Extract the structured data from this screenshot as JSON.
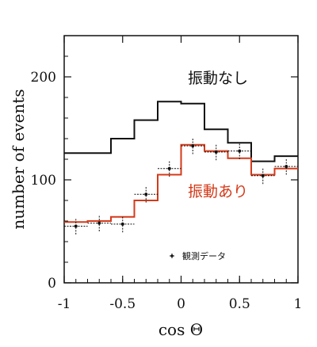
{
  "chart_data": {
    "type": "line",
    "xlabel": "cos Θ",
    "ylabel": "number of events",
    "xlim": [
      -1,
      1
    ],
    "ylim": [
      0,
      240
    ],
    "x_ticks": [
      -1,
      -0.5,
      0,
      0.5,
      1
    ],
    "x_tick_labels": [
      "-1",
      "-0.5",
      "0",
      "0.5",
      "1"
    ],
    "y_ticks": [
      0,
      100,
      200
    ],
    "y_tick_labels": [
      "0",
      "100",
      "200"
    ],
    "bin_edges": [
      -1,
      -0.8,
      -0.6,
      -0.4,
      -0.2,
      0,
      0.2,
      0.4,
      0.6,
      0.8,
      1
    ],
    "series": [
      {
        "name": "振動なし",
        "style": "step",
        "color": "#111111",
        "values": [
          126,
          126,
          140,
          158,
          176,
          174,
          149,
          136,
          118,
          123
        ]
      },
      {
        "name": "振動あり",
        "style": "step",
        "color": "#d43a1a",
        "values": [
          59,
          60,
          64,
          80,
          105,
          134,
          128,
          121,
          105,
          111
        ]
      },
      {
        "name": "観測データ",
        "style": "points",
        "color": "#111111",
        "x": [
          -0.9,
          -0.7,
          -0.5,
          -0.3,
          -0.1,
          0.1,
          0.3,
          0.5,
          0.7,
          0.9
        ],
        "values": [
          55,
          58,
          57,
          86,
          111,
          133,
          127,
          128,
          104,
          113
        ],
        "xerr": 0.1,
        "yerr": 8
      }
    ],
    "grid": false,
    "legend": "bottom-right"
  }
}
